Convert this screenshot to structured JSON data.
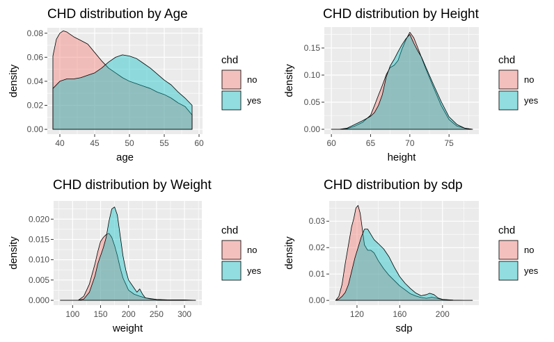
{
  "chart_data": [
    {
      "type": "area",
      "title": "CHD distribution by Age",
      "xlabel": "age",
      "ylabel": "density",
      "xlim": [
        38.2,
        60.5
      ],
      "ylim": [
        -0.004,
        0.0845
      ],
      "xticks": [
        40,
        45,
        50,
        55,
        60
      ],
      "yticks": [
        0.0,
        0.02,
        0.04,
        0.06,
        0.08
      ],
      "xtick_labels": [
        "40",
        "45",
        "50",
        "55",
        "60"
      ],
      "ytick_labels": [
        "0.00",
        "0.02",
        "0.04",
        "0.06",
        "0.08"
      ],
      "legend_title": "chd",
      "series": [
        {
          "name": "no",
          "color": "#F8766D",
          "x": [
            39,
            39.5,
            40,
            40.5,
            41,
            42,
            43,
            44,
            45,
            46,
            47,
            48,
            49,
            50,
            51,
            52,
            53,
            54,
            55,
            56,
            57,
            58,
            59
          ],
          "y": [
            0.061,
            0.075,
            0.08,
            0.082,
            0.081,
            0.077,
            0.074,
            0.071,
            0.064,
            0.057,
            0.051,
            0.047,
            0.043,
            0.04,
            0.038,
            0.036,
            0.034,
            0.031,
            0.029,
            0.026,
            0.022,
            0.019,
            0.012
          ]
        },
        {
          "name": "yes",
          "color": "#00BFC4",
          "x": [
            39,
            40,
            41,
            42,
            43,
            44,
            45,
            46,
            47,
            48,
            49,
            50,
            51,
            52,
            53,
            54,
            55,
            56,
            57,
            58,
            59
          ],
          "y": [
            0.034,
            0.04,
            0.042,
            0.042,
            0.043,
            0.045,
            0.047,
            0.051,
            0.056,
            0.06,
            0.062,
            0.061,
            0.059,
            0.055,
            0.051,
            0.046,
            0.041,
            0.037,
            0.031,
            0.026,
            0.02
          ]
        }
      ]
    },
    {
      "type": "area",
      "title": "CHD distribution by Height",
      "xlabel": "height",
      "ylabel": "density",
      "xlim": [
        59.1,
        78.8
      ],
      "ylim": [
        -0.009,
        0.1885
      ],
      "xticks": [
        60,
        65,
        70,
        75
      ],
      "yticks": [
        0.0,
        0.05,
        0.1,
        0.15
      ],
      "xtick_labels": [
        "60",
        "65",
        "70",
        "75"
      ],
      "ytick_labels": [
        "0.00",
        "0.05",
        "0.10",
        "0.15"
      ],
      "legend_title": "chd",
      "series": [
        {
          "name": "no",
          "color": "#F8766D",
          "x": [
            60,
            61,
            62,
            63,
            64,
            65,
            65.5,
            66,
            66.5,
            67,
            67.5,
            68,
            68.5,
            69,
            69.5,
            70,
            70.5,
            71,
            71.5,
            72,
            73,
            74,
            75,
            76,
            77,
            78
          ],
          "y": [
            0.0,
            0.0,
            0.001,
            0.006,
            0.013,
            0.026,
            0.044,
            0.063,
            0.081,
            0.101,
            0.114,
            0.118,
            0.127,
            0.148,
            0.165,
            0.179,
            0.169,
            0.151,
            0.132,
            0.113,
            0.078,
            0.044,
            0.018,
            0.006,
            0.002,
            0.0
          ]
        },
        {
          "name": "yes",
          "color": "#00BFC4",
          "x": [
            60,
            61,
            62,
            63,
            64,
            65,
            65.5,
            66,
            66.5,
            67,
            67.5,
            68,
            68.5,
            69,
            69.5,
            70,
            70.5,
            71,
            71.5,
            72,
            73,
            74,
            75,
            76,
            77,
            78
          ],
          "y": [
            0.0,
            0.0,
            0.002,
            0.009,
            0.016,
            0.024,
            0.031,
            0.044,
            0.064,
            0.097,
            0.117,
            0.129,
            0.143,
            0.156,
            0.167,
            0.175,
            0.159,
            0.145,
            0.133,
            0.116,
            0.083,
            0.051,
            0.023,
            0.009,
            0.002,
            0.0
          ]
        }
      ]
    },
    {
      "type": "area",
      "title": "CHD distribution by Weight",
      "xlabel": "weight",
      "ylabel": "density",
      "xlim": [
        66,
        331
      ],
      "ylim": [
        -0.0012,
        0.0245
      ],
      "xticks": [
        100,
        150,
        200,
        250,
        300
      ],
      "yticks": [
        0.0,
        0.005,
        0.01,
        0.015,
        0.02
      ],
      "xtick_labels": [
        "100",
        "150",
        "200",
        "250",
        "300"
      ],
      "ytick_labels": [
        "0.000",
        "0.005",
        "0.010",
        "0.015",
        "0.020"
      ],
      "legend_title": "chd",
      "series": [
        {
          "name": "no",
          "color": "#F8766D",
          "x": [
            78,
            110,
            120,
            130,
            140,
            145,
            150,
            155,
            160,
            165,
            170,
            175,
            180,
            185,
            190,
            200,
            210,
            220,
            230,
            240,
            260,
            280,
            300,
            320
          ],
          "y": [
            0.0,
            0.0,
            0.001,
            0.004,
            0.009,
            0.012,
            0.0145,
            0.0155,
            0.0162,
            0.0165,
            0.0155,
            0.0135,
            0.011,
            0.008,
            0.0055,
            0.0025,
            0.0015,
            0.001,
            0.0006,
            0.0003,
            0.0001,
            0.0,
            0.0,
            0.0
          ]
        },
        {
          "name": "yes",
          "color": "#00BFC4",
          "x": [
            78,
            110,
            120,
            130,
            140,
            145,
            150,
            155,
            160,
            165,
            170,
            175,
            180,
            185,
            190,
            195,
            200,
            210,
            215,
            220,
            225,
            230,
            250,
            270,
            300,
            320
          ],
          "y": [
            0.0,
            0.0,
            0.0003,
            0.002,
            0.006,
            0.009,
            0.011,
            0.013,
            0.0155,
            0.0195,
            0.0225,
            0.023,
            0.021,
            0.016,
            0.011,
            0.0075,
            0.005,
            0.003,
            0.002,
            0.0028,
            0.0015,
            0.0006,
            0.0002,
            0.0001,
            0.0001,
            0.0
          ]
        }
      ]
    },
    {
      "type": "area",
      "title": "CHD distribution by sdp",
      "xlabel": "sdp",
      "ylabel": "density",
      "xlim": [
        94,
        234
      ],
      "ylim": [
        -0.0018,
        0.0377
      ],
      "xticks": [
        120,
        160,
        200
      ],
      "yticks": [
        0.0,
        0.01,
        0.02,
        0.03
      ],
      "xtick_labels": [
        "120",
        "160",
        "200"
      ],
      "ytick_labels": [
        "0.00",
        "0.01",
        "0.02",
        "0.03"
      ],
      "legend_title": "chd",
      "series": [
        {
          "name": "no",
          "color": "#F8766D",
          "x": [
            100,
            103,
            106,
            109,
            112,
            115,
            117,
            119,
            121,
            123,
            125,
            127,
            130,
            133,
            136,
            140,
            145,
            150,
            155,
            160,
            165,
            170,
            175,
            180,
            185,
            190,
            195,
            200,
            210,
            220,
            228
          ],
          "y": [
            0.0,
            0.0015,
            0.006,
            0.014,
            0.021,
            0.028,
            0.031,
            0.035,
            0.036,
            0.033,
            0.027,
            0.021,
            0.019,
            0.019,
            0.018,
            0.015,
            0.012,
            0.0095,
            0.0075,
            0.0055,
            0.004,
            0.0025,
            0.0017,
            0.0011,
            0.0008,
            0.0012,
            0.0008,
            0.0003,
            0.0001,
            0.0,
            0.0
          ]
        },
        {
          "name": "yes",
          "color": "#00BFC4",
          "x": [
            100,
            103,
            106,
            109,
            112,
            115,
            118,
            121,
            124,
            127,
            130,
            133,
            136,
            140,
            145,
            150,
            155,
            160,
            165,
            170,
            175,
            180,
            185,
            188,
            192,
            196,
            200,
            210,
            220,
            228
          ],
          "y": [
            0.0,
            0.0005,
            0.0015,
            0.003,
            0.006,
            0.011,
            0.016,
            0.02,
            0.024,
            0.027,
            0.027,
            0.025,
            0.023,
            0.0215,
            0.0195,
            0.0165,
            0.0125,
            0.009,
            0.0065,
            0.0045,
            0.0028,
            0.0018,
            0.0022,
            0.0027,
            0.0022,
            0.0009,
            0.0004,
            0.0001,
            0.0,
            0.0
          ]
        }
      ]
    }
  ]
}
